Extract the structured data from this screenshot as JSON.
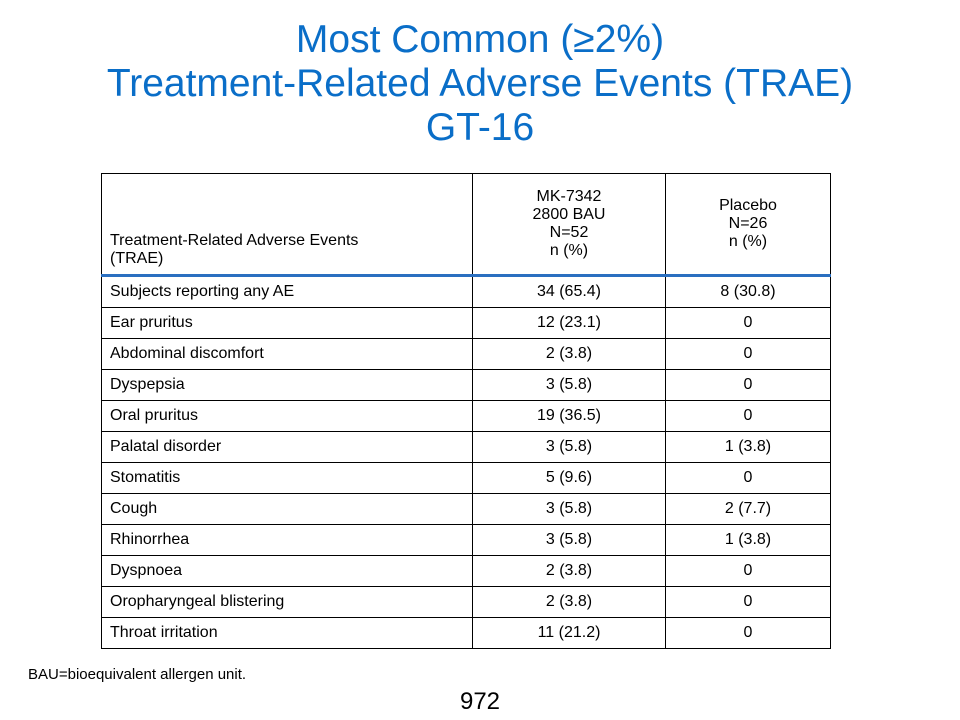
{
  "title": {
    "line1": "Most Common (≥2%)",
    "line2": "Treatment-Related Adverse Events (TRAE)",
    "line3": "GT-16"
  },
  "table": {
    "header": {
      "event": [
        "Treatment-Related  Adverse  Events",
        "(TRAE)"
      ],
      "drug": [
        "MK-7342",
        "2800 BAU",
        "N=52",
        "n (%)"
      ],
      "placebo": [
        "Placebo",
        "N=26",
        "n (%)"
      ]
    },
    "rows": [
      {
        "event": "Subjects reporting any AE",
        "drug": "34 (65.4)",
        "placebo": "8 (30.8)"
      },
      {
        "event": "Ear pruritus",
        "drug": "12 (23.1)",
        "placebo": "0"
      },
      {
        "event": "Abdominal  discomfort",
        "drug": "2 (3.8)",
        "placebo": "0"
      },
      {
        "event": "Dyspepsia",
        "drug": "3 (5.8)",
        "placebo": "0"
      },
      {
        "event": "Oral pruritus",
        "drug": "19 (36.5)",
        "placebo": "0"
      },
      {
        "event": "Palatal disorder",
        "drug": "3 (5.8)",
        "placebo": "1 (3.8)"
      },
      {
        "event": "Stomatitis",
        "drug": "5 (9.6)",
        "placebo": "0"
      },
      {
        "event": "Cough",
        "drug": "3 (5.8)",
        "placebo": "2 (7.7)"
      },
      {
        "event": "Rhinorrhea",
        "drug": "3 (5.8)",
        "placebo": "1 (3.8)"
      },
      {
        "event": "Dyspnoea",
        "drug": "2 (3.8)",
        "placebo": "0"
      },
      {
        "event": "Oropharyngeal  blistering",
        "drug": "2 (3.8)",
        "placebo": "0"
      },
      {
        "event": "Throat irritation",
        "drug": "11 (21.2)",
        "placebo": "0"
      }
    ]
  },
  "footnote": "BAU=bioequivalent allergen unit.",
  "page_number": "972",
  "colors": {
    "title": "#0a6ec8",
    "header_rule": "#2a6fc0"
  }
}
